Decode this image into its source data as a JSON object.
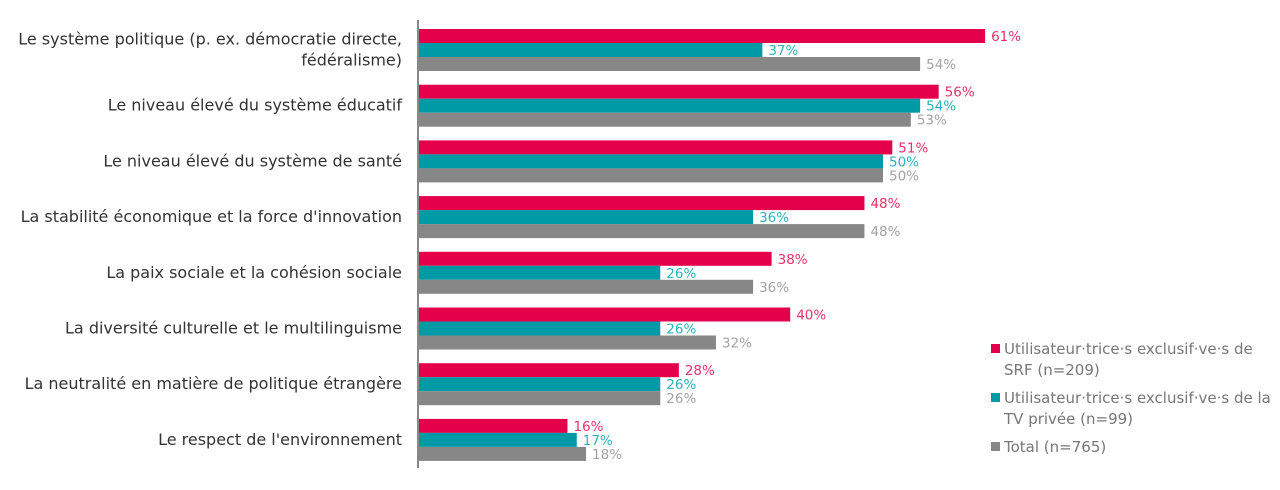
{
  "chart_data": {
    "type": "bar",
    "orientation": "horizontal",
    "categories": [
      [
        "Le système politique (p. ex. démocratie directe,",
        "fédéralisme)"
      ],
      [
        "Le niveau élevé du système éducatif"
      ],
      [
        "Le niveau élevé du système de santé"
      ],
      [
        "La stabilité économique et la force d'innovation"
      ],
      [
        "La paix sociale et la cohésion sociale"
      ],
      [
        "La diversité culturelle et le multilinguisme"
      ],
      [
        "La neutralité en matière de politique étrangère"
      ],
      [
        "Le respect de l'environnement"
      ]
    ],
    "series": [
      {
        "name": [
          "Utilisateur·trice·s exclusif·ve·s de",
          "SRF (n=209)"
        ],
        "color": "#e4004b",
        "label_color": "#e8336a",
        "values": [
          61,
          56,
          51,
          48,
          38,
          40,
          28,
          16
        ]
      },
      {
        "name": [
          "Utilisateur·trice·s exclusif·ve·s de la",
          "TV privée (n=99)"
        ],
        "color": "#009aa6",
        "label_color": "#2ab3bc",
        "values": [
          37,
          54,
          50,
          36,
          26,
          26,
          26,
          17
        ]
      },
      {
        "name": [
          "Total (n=765)"
        ],
        "color": "#878787",
        "label_color": "#a3a3a3",
        "values": [
          54,
          53,
          50,
          48,
          36,
          32,
          26,
          18
        ]
      }
    ],
    "unit": "%",
    "xlim": [
      0,
      100
    ],
    "grid": false,
    "legend_position": "right"
  }
}
